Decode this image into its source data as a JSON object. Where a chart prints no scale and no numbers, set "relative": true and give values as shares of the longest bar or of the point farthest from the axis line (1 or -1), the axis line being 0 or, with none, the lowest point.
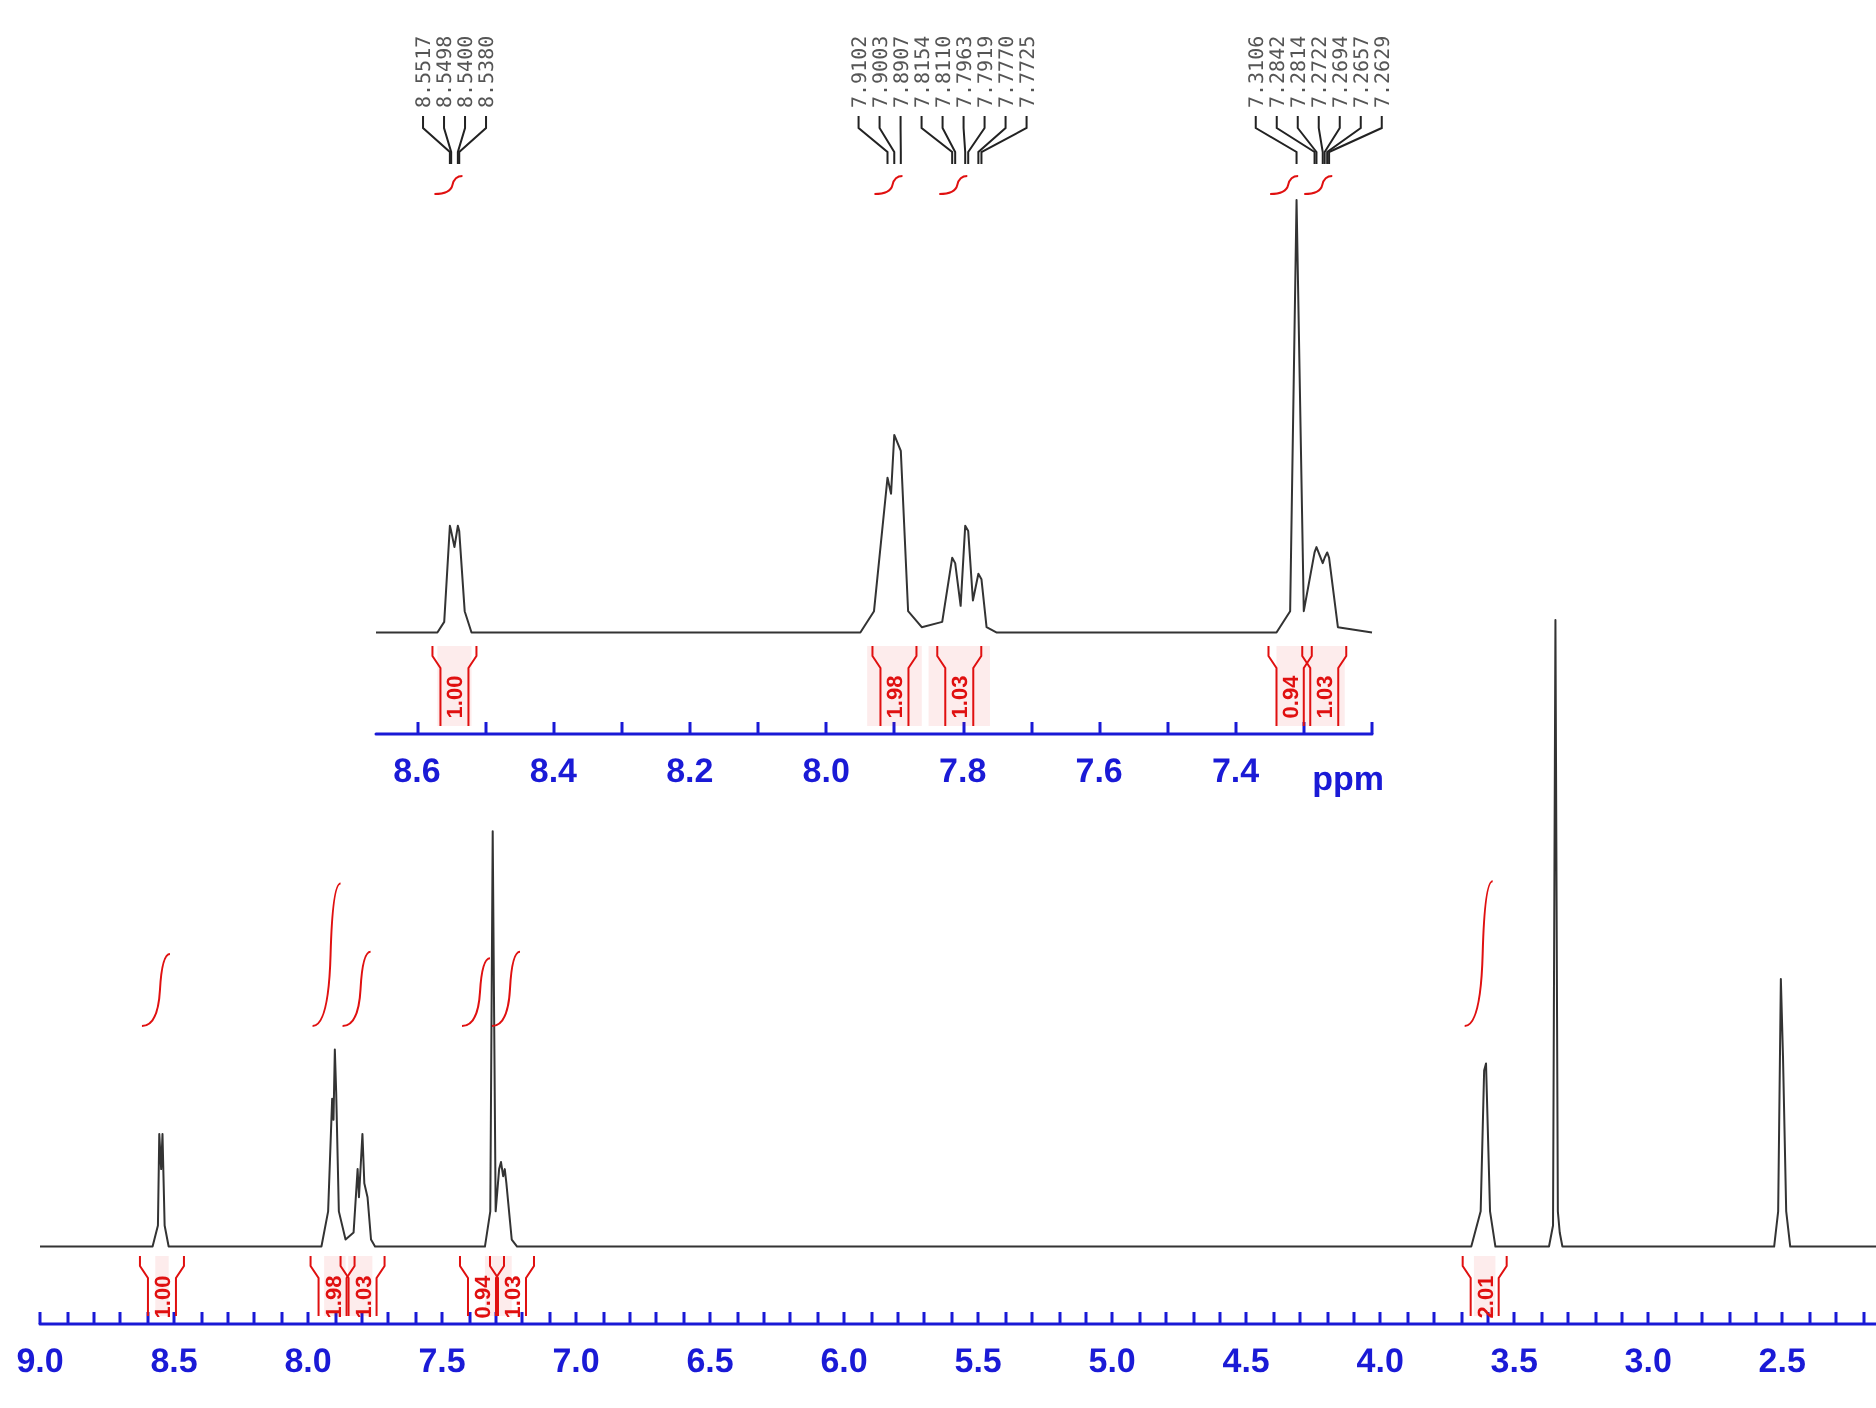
{
  "chart_data": [
    {
      "type": "line",
      "relative": true,
      "xlabel": "ppm",
      "xlim": [
        8.66,
        7.2
      ],
      "xticks": [
        {
          "value": 8.6,
          "label": "8.6"
        },
        {
          "value": 8.5,
          "label": null
        },
        {
          "value": 8.4,
          "label": "8.4"
        },
        {
          "value": 8.3,
          "label": null
        },
        {
          "value": 8.2,
          "label": "8.2"
        },
        {
          "value": 8.1,
          "label": null
        },
        {
          "value": 8.0,
          "label": "8.0"
        },
        {
          "value": 7.9,
          "label": null
        },
        {
          "value": 7.8,
          "label": "7.8"
        },
        {
          "value": 7.7,
          "label": null
        },
        {
          "value": 7.6,
          "label": "7.6"
        },
        {
          "value": 7.5,
          "label": null
        },
        {
          "value": 7.4,
          "label": "7.4"
        },
        {
          "value": 7.3,
          "label": null
        },
        {
          "value": 7.2,
          "label": null
        }
      ],
      "series": [
        {
          "color": "#333333",
          "x": [
            8.66,
            8.57,
            8.56,
            8.5517,
            8.5498,
            8.545,
            8.54,
            8.538,
            8.53,
            8.52,
            7.95,
            7.93,
            7.9102,
            7.905,
            7.9003,
            7.8907,
            7.88,
            7.86,
            7.83,
            7.8154,
            7.811,
            7.803,
            7.7963,
            7.7919,
            7.785,
            7.777,
            7.7725,
            7.765,
            7.75,
            7.34,
            7.32,
            7.3106,
            7.3,
            7.2842,
            7.2814,
            7.2722,
            7.2694,
            7.2657,
            7.2629,
            7.25,
            7.2
          ],
          "values": [
            0.19,
            0.19,
            0.21,
            0.39,
            0.38,
            0.35,
            0.39,
            0.38,
            0.23,
            0.19,
            0.19,
            0.23,
            0.48,
            0.45,
            0.56,
            0.53,
            0.23,
            0.2,
            0.21,
            0.33,
            0.32,
            0.24,
            0.39,
            0.38,
            0.25,
            0.3,
            0.29,
            0.2,
            0.19,
            0.19,
            0.23,
            1,
            0.23,
            0.34,
            0.35,
            0.32,
            0.33,
            0.34,
            0.33,
            0.2,
            0.19
          ]
        }
      ],
      "annotations": [
        "8.5517",
        "8.5498",
        "8.5400",
        "8.5380",
        "7.9102",
        "7.9003",
        "7.8907",
        "7.8154",
        "7.8110",
        "7.7963",
        "7.7919",
        "7.7770",
        "7.7725",
        "7.3106",
        "7.2842",
        "7.2814",
        "7.2722",
        "7.2694",
        "7.2657",
        "7.2629"
      ],
      "bands": [
        {
          "axis": "x",
          "from": 8.57,
          "to": 8.52,
          "label": "1.00",
          "color": "#e01010"
        },
        {
          "axis": "x",
          "from": 7.94,
          "to": 7.86,
          "label": "1.98",
          "color": "#e01010"
        },
        {
          "axis": "x",
          "from": 7.85,
          "to": 7.76,
          "label": "1.03",
          "color": "#e01010"
        },
        {
          "axis": "x",
          "from": 7.34,
          "to": 7.3,
          "label": "0.94",
          "color": "#e01010"
        },
        {
          "axis": "x",
          "from": 7.3,
          "to": 7.24,
          "label": "1.03",
          "color": "#e01010"
        }
      ]
    },
    {
      "type": "line",
      "relative": true,
      "xlim": [
        9.0,
        2.15
      ],
      "xticks": [
        {
          "value": 9.0,
          "label": "9.0"
        },
        {
          "value": 8.9,
          "label": null
        },
        {
          "value": 8.8,
          "label": null
        },
        {
          "value": 8.7,
          "label": null
        },
        {
          "value": 8.6,
          "label": null
        },
        {
          "value": 8.5,
          "label": "8.5"
        },
        {
          "value": 8.4,
          "label": null
        },
        {
          "value": 8.3,
          "label": null
        },
        {
          "value": 8.2,
          "label": null
        },
        {
          "value": 8.1,
          "label": null
        },
        {
          "value": 8.0,
          "label": "8.0"
        },
        {
          "value": 7.9,
          "label": null
        },
        {
          "value": 7.8,
          "label": null
        },
        {
          "value": 7.7,
          "label": null
        },
        {
          "value": 7.6,
          "label": null
        },
        {
          "value": 7.5,
          "label": "7.5"
        },
        {
          "value": 7.4,
          "label": null
        },
        {
          "value": 7.3,
          "label": null
        },
        {
          "value": 7.2,
          "label": null
        },
        {
          "value": 7.1,
          "label": null
        },
        {
          "value": 7.0,
          "label": "7.0"
        },
        {
          "value": 6.9,
          "label": null
        },
        {
          "value": 6.8,
          "label": null
        },
        {
          "value": 6.7,
          "label": null
        },
        {
          "value": 6.6,
          "label": null
        },
        {
          "value": 6.5,
          "label": "6.5"
        },
        {
          "value": 6.4,
          "label": null
        },
        {
          "value": 6.3,
          "label": null
        },
        {
          "value": 6.2,
          "label": null
        },
        {
          "value": 6.1,
          "label": null
        },
        {
          "value": 6.0,
          "label": "6.0"
        },
        {
          "value": 5.9,
          "label": null
        },
        {
          "value": 5.8,
          "label": null
        },
        {
          "value": 5.7,
          "label": null
        },
        {
          "value": 5.6,
          "label": null
        },
        {
          "value": 5.5,
          "label": "5.5"
        },
        {
          "value": 5.4,
          "label": null
        },
        {
          "value": 5.3,
          "label": null
        },
        {
          "value": 5.2,
          "label": null
        },
        {
          "value": 5.1,
          "label": null
        },
        {
          "value": 5.0,
          "label": "5.0"
        },
        {
          "value": 4.9,
          "label": null
        },
        {
          "value": 4.8,
          "label": null
        },
        {
          "value": 4.7,
          "label": null
        },
        {
          "value": 4.6,
          "label": null
        },
        {
          "value": 4.5,
          "label": "4.5"
        },
        {
          "value": 4.4,
          "label": null
        },
        {
          "value": 4.3,
          "label": null
        },
        {
          "value": 4.2,
          "label": null
        },
        {
          "value": 4.1,
          "label": null
        },
        {
          "value": 4.0,
          "label": "4.0"
        },
        {
          "value": 3.9,
          "label": null
        },
        {
          "value": 3.8,
          "label": null
        },
        {
          "value": 3.7,
          "label": null
        },
        {
          "value": 3.6,
          "label": null
        },
        {
          "value": 3.5,
          "label": "3.5"
        },
        {
          "value": 3.4,
          "label": null
        },
        {
          "value": 3.3,
          "label": null
        },
        {
          "value": 3.2,
          "label": null
        },
        {
          "value": 3.1,
          "label": null
        },
        {
          "value": 3.0,
          "label": "3.0"
        },
        {
          "value": 2.9,
          "label": null
        },
        {
          "value": 2.8,
          "label": null
        },
        {
          "value": 2.7,
          "label": null
        },
        {
          "value": 2.6,
          "label": null
        },
        {
          "value": 2.5,
          "label": "2.5"
        },
        {
          "value": 2.4,
          "label": null
        },
        {
          "value": 2.3,
          "label": null
        },
        {
          "value": 2.2,
          "label": null
        }
      ],
      "series": [
        {
          "color": "#333333",
          "x": [
            9.0,
            8.58,
            8.56,
            8.555,
            8.548,
            8.543,
            8.535,
            8.52,
            7.95,
            7.925,
            7.91,
            7.905,
            7.9,
            7.895,
            7.885,
            7.86,
            7.83,
            7.815,
            7.81,
            7.797,
            7.79,
            7.778,
            7.765,
            7.75,
            7.34,
            7.32,
            7.311,
            7.3,
            7.287,
            7.28,
            7.272,
            7.266,
            7.26,
            7.24,
            7.22,
            3.66,
            3.625,
            3.612,
            3.605,
            3.59,
            3.57,
            3.37,
            3.355,
            3.346,
            3.337,
            3.33,
            3.32,
            2.53,
            2.515,
            2.505,
            2.497,
            2.485,
            2.47,
            2.15
          ],
          "values": [
            0.11,
            0.11,
            0.14,
            0.27,
            0.22,
            0.27,
            0.14,
            0.11,
            0.11,
            0.16,
            0.32,
            0.29,
            0.39,
            0.33,
            0.16,
            0.12,
            0.13,
            0.22,
            0.18,
            0.27,
            0.2,
            0.18,
            0.12,
            0.11,
            0.11,
            0.16,
            0.7,
            0.16,
            0.22,
            0.23,
            0.21,
            0.22,
            0.2,
            0.12,
            0.11,
            0.11,
            0.16,
            0.36,
            0.37,
            0.16,
            0.11,
            0.11,
            0.14,
            1,
            0.16,
            0.13,
            0.11,
            0.11,
            0.16,
            0.49,
            0.38,
            0.16,
            0.11,
            0.11
          ]
        }
      ],
      "bands": [
        {
          "axis": "x",
          "from": 8.57,
          "to": 8.52,
          "label": "1.00",
          "color": "#e01010"
        },
        {
          "axis": "x",
          "from": 7.94,
          "to": 7.86,
          "label": "1.98",
          "color": "#e01010"
        },
        {
          "axis": "x",
          "from": 7.85,
          "to": 7.76,
          "label": "1.03",
          "color": "#e01010"
        },
        {
          "axis": "x",
          "from": 7.34,
          "to": 7.3,
          "label": "0.94",
          "color": "#e01010"
        },
        {
          "axis": "x",
          "from": 7.3,
          "to": 7.24,
          "label": "1.03",
          "color": "#e01010"
        },
        {
          "axis": "x",
          "from": 3.65,
          "to": 3.57,
          "label": "2.01",
          "color": "#e01010"
        }
      ]
    }
  ]
}
